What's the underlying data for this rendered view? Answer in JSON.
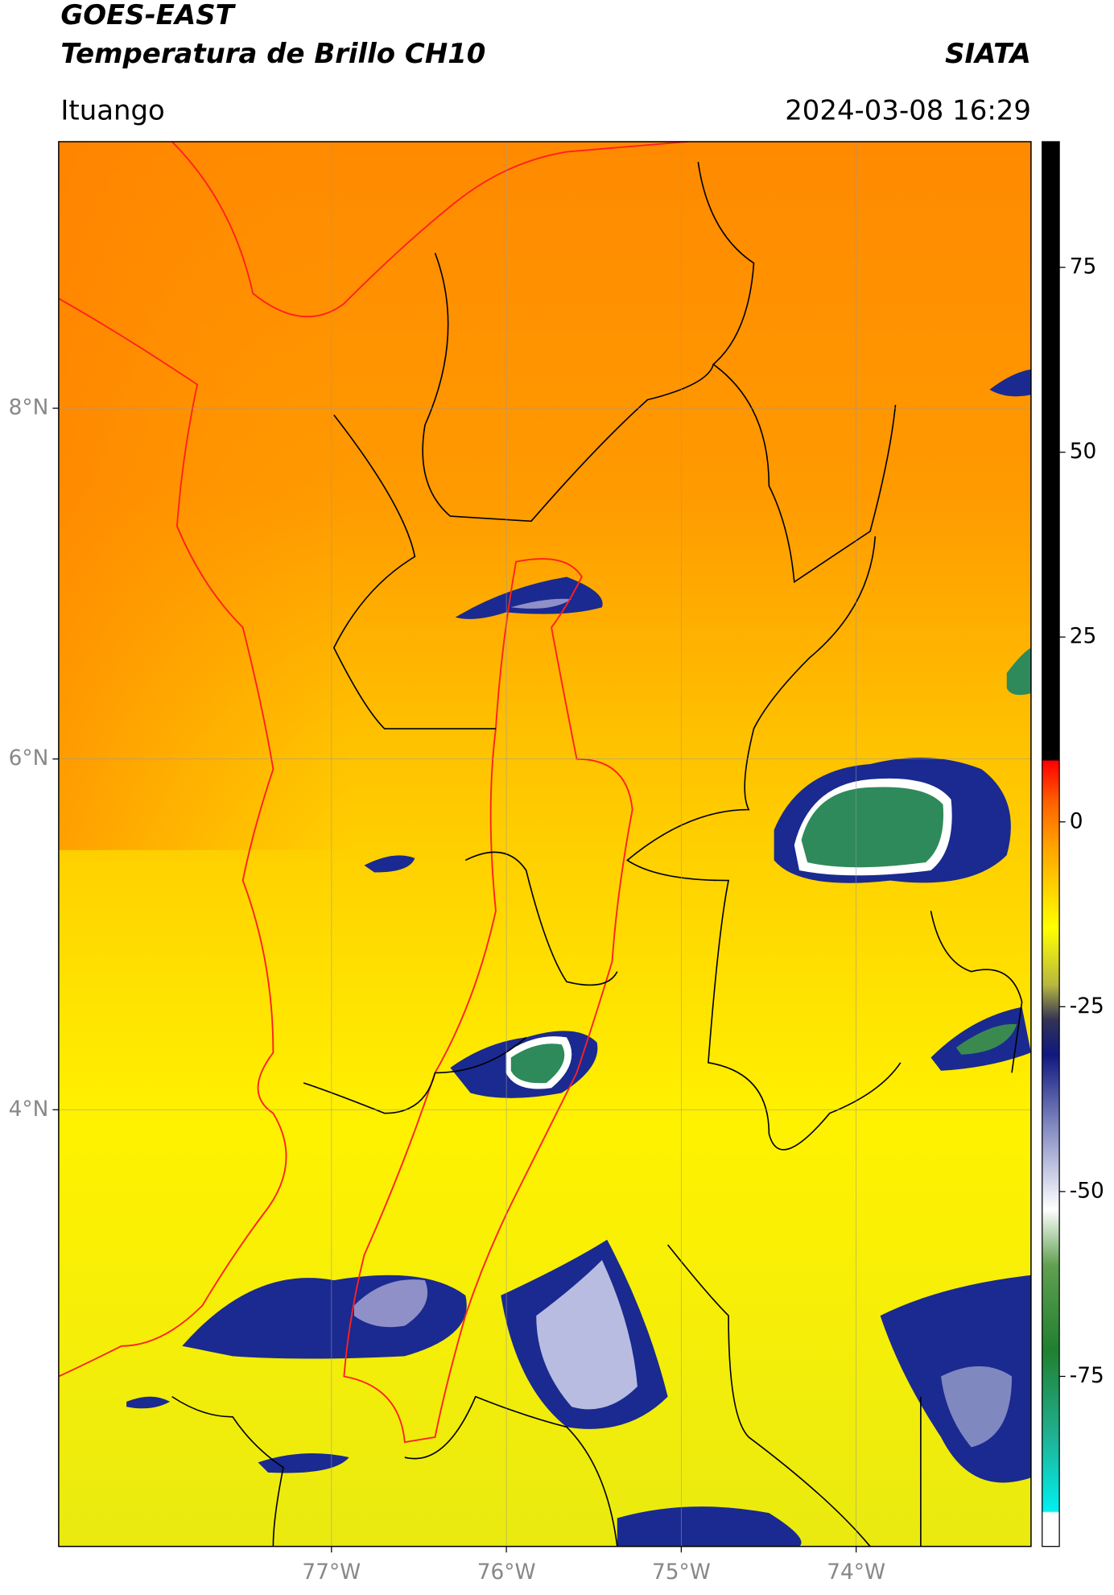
{
  "header": {
    "title": "GOES-EAST",
    "subtitle": "Temperatura de Brillo CH10",
    "brand": "SIATA",
    "location": "Ituango",
    "datetime": "2024-03-08 16:29"
  },
  "chart_data": {
    "type": "map",
    "xlim": [
      -78.56,
      -73.0
    ],
    "ylim": [
      1.51,
      9.52
    ],
    "xticks": [
      {
        "value": -77,
        "label": "77°W"
      },
      {
        "value": -76,
        "label": "76°W"
      },
      {
        "value": -75,
        "label": "75°W"
      },
      {
        "value": -74,
        "label": "74°W"
      }
    ],
    "yticks": [
      {
        "value": 4,
        "label": "4°N"
      },
      {
        "value": 6,
        "label": "6°N"
      },
      {
        "value": 8,
        "label": "8°N"
      }
    ],
    "grid": true,
    "colorbar": {
      "lim": [
        -98,
        92
      ],
      "ticks": [
        -75,
        -50,
        -25,
        0,
        25,
        50,
        75
      ]
    }
  }
}
